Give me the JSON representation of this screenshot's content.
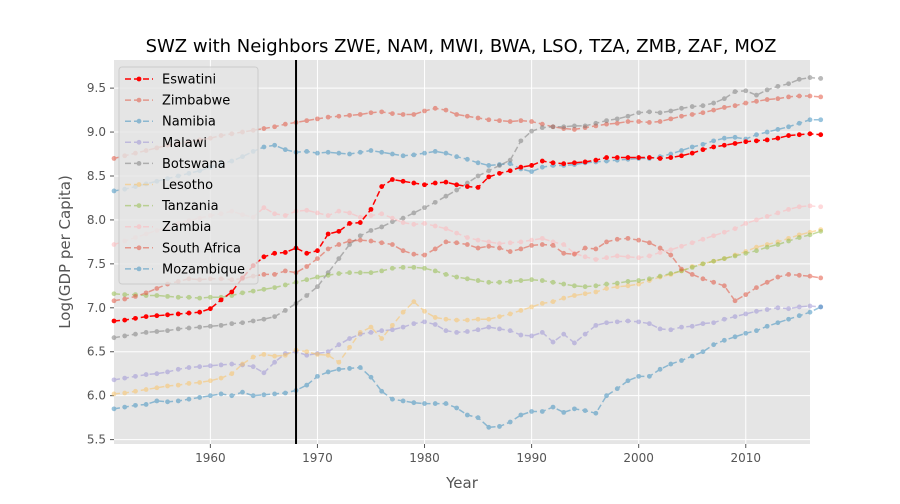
{
  "chart_data": {
    "type": "line",
    "title": "SWZ with Neighbors ZWE, NAM, MWI, BWA, LSO, TZA, ZMB, ZAF, MOZ",
    "xlabel": "Year",
    "ylabel": "Log(GDP per Capita)",
    "xlim": [
      1951,
      2016
    ],
    "ylim": [
      5.45,
      9.82
    ],
    "x_ticks": [
      1960,
      1970,
      1980,
      1990,
      2000,
      2010
    ],
    "y_ticks": [
      5.5,
      6.0,
      6.5,
      7.0,
      7.5,
      8.0,
      8.5,
      9.0,
      9.5
    ],
    "grid": true,
    "legend_position": "upper-left",
    "vline_x": 1968,
    "x_start": 1951,
    "series": [
      {
        "name": "Eswatini",
        "color": "#ff0000",
        "alpha": 1.0,
        "values": [
          6.85,
          6.86,
          6.88,
          6.9,
          6.91,
          6.92,
          6.93,
          6.94,
          6.95,
          6.99,
          7.09,
          7.18,
          7.34,
          7.48,
          7.58,
          7.62,
          7.63,
          7.68,
          7.62,
          7.65,
          7.84,
          7.87,
          7.96,
          7.97,
          8.12,
          8.38,
          8.46,
          8.44,
          8.42,
          8.4,
          8.42,
          8.43,
          8.4,
          8.38,
          8.37,
          8.49,
          8.53,
          8.56,
          8.6,
          8.62,
          8.67,
          8.65,
          8.64,
          8.65,
          8.66,
          8.68,
          8.71,
          8.71,
          8.71,
          8.71,
          8.71,
          8.7,
          8.71,
          8.73,
          8.76,
          8.8,
          8.83,
          8.85,
          8.87,
          8.89,
          8.9,
          8.91,
          8.93,
          8.96,
          8.97,
          8.98,
          8.97
        ]
      },
      {
        "name": "Zimbabwe",
        "color": "#e24a33",
        "alpha": 0.5,
        "values": [
          8.7,
          8.73,
          8.76,
          8.79,
          8.82,
          8.85,
          8.87,
          8.89,
          8.91,
          8.93,
          8.96,
          8.98,
          9.0,
          9.02,
          9.04,
          9.06,
          9.09,
          9.11,
          9.13,
          9.15,
          9.17,
          9.18,
          9.19,
          9.2,
          9.22,
          9.23,
          9.21,
          9.2,
          9.2,
          9.24,
          9.27,
          9.25,
          9.2,
          9.18,
          9.16,
          9.14,
          9.13,
          9.12,
          9.13,
          9.12,
          9.09,
          9.06,
          9.04,
          9.03,
          9.05,
          9.07,
          9.09,
          9.1,
          9.12,
          9.12,
          9.11,
          9.12,
          9.15,
          9.18,
          9.2,
          9.22,
          9.25,
          9.28,
          9.3,
          9.33,
          9.35,
          9.37,
          9.38,
          9.4,
          9.41,
          9.41,
          9.4
        ]
      },
      {
        "name": "Namibia",
        "color": "#348abd",
        "alpha": 0.5,
        "values": [
          8.33,
          8.35,
          8.38,
          8.41,
          8.44,
          8.47,
          8.5,
          8.53,
          8.56,
          8.6,
          8.64,
          8.67,
          8.72,
          8.78,
          8.83,
          8.85,
          8.8,
          8.77,
          8.78,
          8.76,
          8.77,
          8.76,
          8.75,
          8.77,
          8.79,
          8.77,
          8.75,
          8.73,
          8.74,
          8.76,
          8.78,
          8.76,
          8.72,
          8.69,
          8.65,
          8.62,
          8.63,
          8.64,
          8.58,
          8.55,
          8.6,
          8.62,
          8.62,
          8.63,
          8.65,
          8.66,
          8.67,
          8.68,
          8.69,
          8.7,
          8.7,
          8.72,
          8.75,
          8.79,
          8.83,
          8.86,
          8.9,
          8.93,
          8.94,
          8.92,
          8.97,
          9.0,
          9.03,
          9.06,
          9.1,
          9.14,
          9.14
        ]
      },
      {
        "name": "Malawi",
        "color": "#988ed5",
        "alpha": 0.5,
        "values": [
          6.18,
          6.2,
          6.22,
          6.24,
          6.25,
          6.27,
          6.3,
          6.32,
          6.33,
          6.34,
          6.35,
          6.36,
          6.35,
          6.33,
          6.26,
          6.38,
          6.48,
          6.5,
          6.46,
          6.48,
          6.5,
          6.58,
          6.65,
          6.7,
          6.72,
          6.74,
          6.75,
          6.78,
          6.82,
          6.84,
          6.81,
          6.74,
          6.72,
          6.73,
          6.75,
          6.78,
          6.76,
          6.74,
          6.69,
          6.68,
          6.72,
          6.61,
          6.7,
          6.6,
          6.7,
          6.8,
          6.83,
          6.84,
          6.85,
          6.84,
          6.82,
          6.76,
          6.75,
          6.78,
          6.79,
          6.82,
          6.83,
          6.87,
          6.9,
          6.93,
          6.96,
          6.98,
          7.0,
          6.99,
          7.01,
          7.02,
          7.01
        ]
      },
      {
        "name": "Botswana",
        "color": "#777777",
        "alpha": 0.5,
        "values": [
          6.66,
          6.68,
          6.7,
          6.72,
          6.73,
          6.74,
          6.76,
          6.77,
          6.78,
          6.79,
          6.8,
          6.82,
          6.83,
          6.85,
          6.87,
          6.9,
          6.97,
          7.05,
          7.14,
          7.24,
          7.4,
          7.56,
          7.72,
          7.82,
          7.88,
          7.92,
          7.98,
          8.02,
          8.08,
          8.14,
          8.2,
          8.27,
          8.34,
          8.42,
          8.5,
          8.56,
          8.62,
          8.68,
          8.9,
          9.01,
          9.05,
          9.06,
          9.06,
          9.07,
          9.07,
          9.1,
          9.13,
          9.15,
          9.18,
          9.22,
          9.23,
          9.22,
          9.24,
          9.27,
          9.29,
          9.3,
          9.33,
          9.38,
          9.46,
          9.47,
          9.42,
          9.48,
          9.52,
          9.55,
          9.6,
          9.62,
          9.61
        ]
      },
      {
        "name": "Lesotho",
        "color": "#fbc15e",
        "alpha": 0.5,
        "values": [
          6.02,
          6.03,
          6.05,
          6.07,
          6.09,
          6.11,
          6.12,
          6.14,
          6.15,
          6.17,
          6.2,
          6.25,
          6.36,
          6.44,
          6.47,
          6.45,
          6.46,
          6.52,
          6.5,
          6.47,
          6.46,
          6.38,
          6.55,
          6.72,
          6.78,
          6.65,
          6.8,
          6.95,
          7.07,
          6.96,
          6.89,
          6.87,
          6.86,
          6.86,
          6.87,
          6.87,
          6.9,
          6.93,
          6.97,
          7.01,
          7.05,
          7.07,
          7.11,
          7.14,
          7.16,
          7.18,
          7.22,
          7.24,
          7.25,
          7.27,
          7.31,
          7.35,
          7.38,
          7.42,
          7.47,
          7.5,
          7.53,
          7.56,
          7.6,
          7.64,
          7.69,
          7.72,
          7.75,
          7.79,
          7.83,
          7.86,
          7.89
        ]
      },
      {
        "name": "Tanzania",
        "color": "#8eba42",
        "alpha": 0.5,
        "values": [
          7.16,
          7.15,
          7.15,
          7.14,
          7.14,
          7.13,
          7.12,
          7.12,
          7.11,
          7.12,
          7.12,
          7.14,
          7.17,
          7.19,
          7.21,
          7.23,
          7.26,
          7.29,
          7.32,
          7.35,
          7.37,
          7.39,
          7.4,
          7.4,
          7.4,
          7.42,
          7.45,
          7.46,
          7.46,
          7.45,
          7.42,
          7.38,
          7.35,
          7.33,
          7.31,
          7.29,
          7.29,
          7.3,
          7.31,
          7.32,
          7.31,
          7.29,
          7.27,
          7.25,
          7.24,
          7.25,
          7.27,
          7.28,
          7.3,
          7.31,
          7.33,
          7.36,
          7.39,
          7.42,
          7.46,
          7.5,
          7.53,
          7.56,
          7.59,
          7.62,
          7.65,
          7.69,
          7.72,
          7.76,
          7.8,
          7.83,
          7.87
        ]
      },
      {
        "name": "Zambia",
        "color": "#ffb5b8",
        "alpha": 0.5,
        "values": [
          7.72,
          7.76,
          7.8,
          7.84,
          7.88,
          7.92,
          7.96,
          7.99,
          8.02,
          8.05,
          8.07,
          8.1,
          8.06,
          8.03,
          8.14,
          8.07,
          8.05,
          8.1,
          8.11,
          8.08,
          8.05,
          8.1,
          8.08,
          8.03,
          8.05,
          8.07,
          8.02,
          7.97,
          7.95,
          7.96,
          7.93,
          7.9,
          7.85,
          7.8,
          7.77,
          7.75,
          7.73,
          7.74,
          7.75,
          7.77,
          7.79,
          7.75,
          7.72,
          7.62,
          7.58,
          7.55,
          7.57,
          7.59,
          7.58,
          7.57,
          7.59,
          7.63,
          7.66,
          7.7,
          7.74,
          7.78,
          7.82,
          7.86,
          7.9,
          7.96,
          8.0,
          8.04,
          8.08,
          8.12,
          8.15,
          8.16,
          8.15
        ]
      },
      {
        "name": "South Africa",
        "color": "#e24a33",
        "alpha": 0.5,
        "values": [
          7.08,
          7.1,
          7.13,
          7.17,
          7.22,
          7.27,
          7.3,
          7.33,
          7.32,
          7.33,
          7.33,
          7.32,
          7.33,
          7.36,
          7.38,
          7.38,
          7.42,
          7.4,
          7.47,
          7.56,
          7.67,
          7.72,
          7.76,
          7.77,
          7.76,
          7.74,
          7.72,
          7.65,
          7.61,
          7.6,
          7.67,
          7.75,
          7.74,
          7.72,
          7.68,
          7.7,
          7.68,
          7.64,
          7.67,
          7.71,
          7.72,
          7.71,
          7.62,
          7.61,
          7.68,
          7.67,
          7.75,
          7.78,
          7.79,
          7.77,
          7.74,
          7.68,
          7.6,
          7.44,
          7.38,
          7.33,
          7.29,
          7.25,
          7.08,
          7.15,
          7.23,
          7.29,
          7.35,
          7.38,
          7.37,
          7.36,
          7.34
        ]
      },
      {
        "name": "Mozambique",
        "color": "#348abd",
        "alpha": 0.5,
        "values": [
          5.85,
          5.87,
          5.89,
          5.9,
          5.94,
          5.93,
          5.94,
          5.96,
          5.98,
          6.0,
          6.02,
          6.0,
          6.04,
          6.0,
          6.01,
          6.02,
          6.03,
          6.06,
          6.12,
          6.22,
          6.27,
          6.3,
          6.31,
          6.32,
          6.21,
          6.05,
          5.96,
          5.94,
          5.92,
          5.91,
          5.91,
          5.91,
          5.86,
          5.78,
          5.75,
          5.64,
          5.65,
          5.7,
          5.78,
          5.82,
          5.82,
          5.87,
          5.81,
          5.85,
          5.83,
          5.8,
          6.0,
          6.08,
          6.17,
          6.22,
          6.22,
          6.3,
          6.36,
          6.4,
          6.45,
          6.5,
          6.58,
          6.63,
          6.67,
          6.71,
          6.74,
          6.79,
          6.83,
          6.87,
          6.91,
          6.95,
          7.01
        ]
      }
    ]
  }
}
